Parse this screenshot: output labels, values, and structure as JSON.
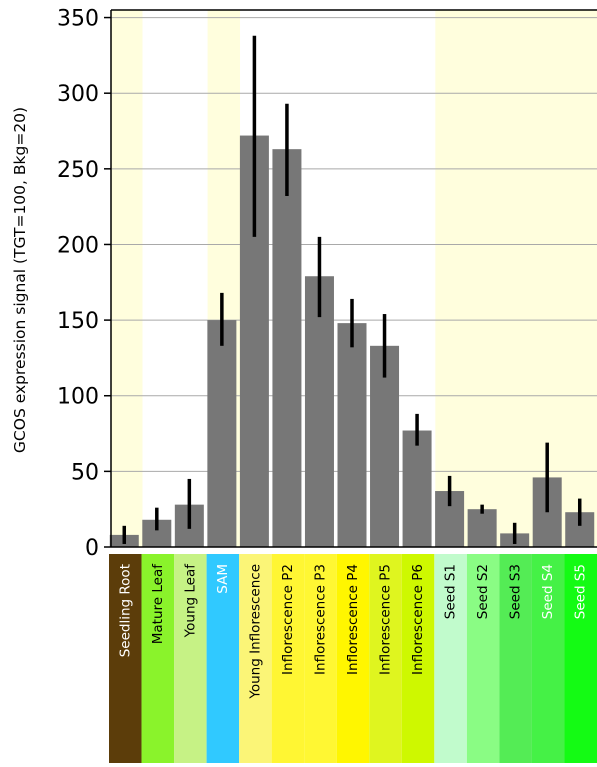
{
  "chart_data": {
    "type": "bar",
    "title": "",
    "xlabel": "",
    "ylabel": "GCOS expression signal (TGT=100, Bkg=20)",
    "ylim": [
      0,
      355
    ],
    "yticks": [
      0,
      50,
      100,
      150,
      200,
      250,
      300,
      350
    ],
    "grid": true,
    "categories": [
      "Seedling Root",
      "Mature Leaf",
      "Young Leaf",
      "SAM",
      "Young Inflorescence",
      "Inflorescence P2",
      "Inflorescence P3",
      "Inflorescence P4",
      "Inflorescence P5",
      "Inflorescence P6",
      "Seed S1",
      "Seed S2",
      "Seed S3",
      "Seed S4",
      "Seed S5"
    ],
    "values": [
      8,
      18,
      28,
      150,
      272,
      263,
      179,
      148,
      133,
      77,
      37,
      25,
      9,
      46,
      23
    ],
    "error_low": [
      2,
      11,
      12,
      133,
      205,
      232,
      152,
      132,
      112,
      67,
      27,
      22,
      2,
      23,
      14
    ],
    "error_high": [
      14,
      26,
      45,
      168,
      338,
      293,
      205,
      164,
      154,
      88,
      47,
      28,
      16,
      69,
      32
    ],
    "bar_color": "#777777",
    "band_colors": [
      "#fffedd",
      "#ffffff",
      "#fffedd",
      "#ffffff",
      "#fffedd"
    ],
    "label_colors": [
      "#5c3d0a",
      "#8af32b",
      "#c6f285",
      "#30c9ff",
      "#fbf577",
      "#fff633",
      "#fff733",
      "#fff600",
      "#dff51f",
      "#cef800",
      "#c1fbcc",
      "#8afc84",
      "#54ec55",
      "#45f146",
      "#14fb14"
    ],
    "label_text_colors": [
      "#ffffff",
      "#000000",
      "#000000",
      "#ffffff",
      "#000000",
      "#000000",
      "#000000",
      "#000000",
      "#000000",
      "#000000",
      "#000000",
      "#000000",
      "#000000",
      "#ffffff",
      "#ffffff"
    ]
  }
}
